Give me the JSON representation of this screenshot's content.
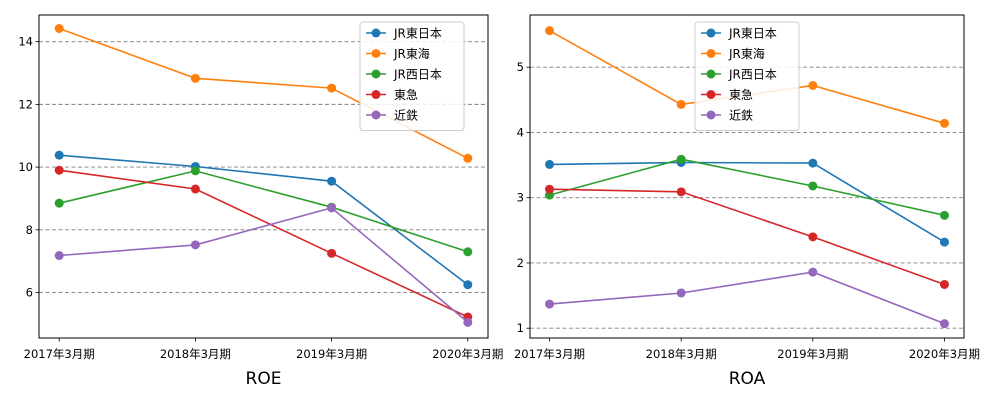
{
  "chart_data": [
    {
      "type": "line",
      "xlabel": "ROE",
      "categories": [
        "2017年3月期",
        "2018年3月期",
        "2019年3月期",
        "2020年3月期"
      ],
      "yticks": [
        6,
        8,
        10,
        12,
        14
      ],
      "ylim": [
        4.55,
        14.85
      ],
      "grid": "horizontal dashed",
      "legend_position": "top-right",
      "series": [
        {
          "name": "JR東日本",
          "color": "#1f77b4",
          "values": [
            10.38,
            10.02,
            9.55,
            6.25
          ]
        },
        {
          "name": "JR東海",
          "color": "#ff7f0e",
          "values": [
            14.42,
            12.83,
            12.52,
            10.28
          ]
        },
        {
          "name": "JR西日本",
          "color": "#2ca02c",
          "values": [
            8.85,
            9.88,
            8.72,
            7.3
          ]
        },
        {
          "name": "東急",
          "color": "#d62728",
          "values": [
            9.9,
            9.3,
            7.25,
            5.22
          ]
        },
        {
          "name": "近鉄",
          "color": "#9467bd",
          "values": [
            7.18,
            7.52,
            8.7,
            5.05
          ]
        }
      ]
    },
    {
      "type": "line",
      "xlabel": "ROA",
      "categories": [
        "2017年3月期",
        "2018年3月期",
        "2019年3月期",
        "2020年3月期"
      ],
      "yticks": [
        1,
        2,
        3,
        4,
        5
      ],
      "ylim": [
        0.85,
        5.8
      ],
      "grid": "horizontal dashed",
      "legend_position": "top-center",
      "series": [
        {
          "name": "JR東日本",
          "color": "#1f77b4",
          "values": [
            3.51,
            3.54,
            3.53,
            2.32
          ]
        },
        {
          "name": "JR東海",
          "color": "#ff7f0e",
          "values": [
            5.56,
            4.43,
            4.72,
            4.14
          ]
        },
        {
          "name": "JR西日本",
          "color": "#2ca02c",
          "values": [
            3.04,
            3.59,
            3.18,
            2.73
          ]
        },
        {
          "name": "東急",
          "color": "#d62728",
          "values": [
            3.13,
            3.09,
            2.4,
            1.67
          ]
        },
        {
          "name": "近鉄",
          "color": "#9467bd",
          "values": [
            1.37,
            1.54,
            1.86,
            1.07
          ]
        }
      ]
    }
  ]
}
